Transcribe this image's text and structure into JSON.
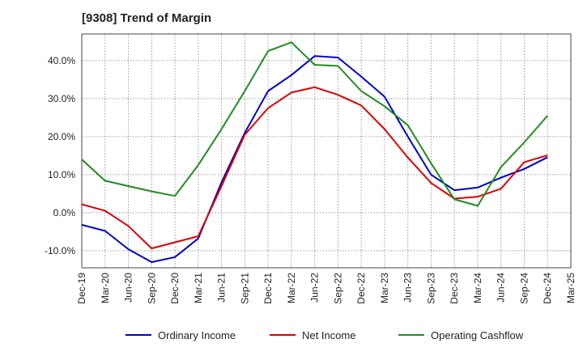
{
  "chart_data": {
    "type": "line",
    "title": "[9308]  Trend of Margin",
    "xlabel": "",
    "ylabel": "",
    "categories": [
      "Dec-19",
      "Mar-20",
      "Jun-20",
      "Sep-20",
      "Dec-20",
      "Mar-21",
      "Jun-21",
      "Sep-21",
      "Dec-21",
      "Mar-22",
      "Jun-22",
      "Sep-22",
      "Dec-22",
      "Mar-23",
      "Jun-23",
      "Sep-23",
      "Dec-23",
      "Mar-24",
      "Jun-24",
      "Sep-24",
      "Dec-24",
      "Mar-25"
    ],
    "ylim": [
      -14.5,
      47.0
    ],
    "y_ticks": [
      -10,
      0,
      10,
      20,
      30,
      40
    ],
    "y_tick_labels": [
      "-10.0%",
      "0.0%",
      "10.0%",
      "20.0%",
      "30.0%",
      "40.0%"
    ],
    "grid": true,
    "legend_position": "bottom",
    "series": [
      {
        "name": "Ordinary Income",
        "color": "#0000cc",
        "values": [
          -3.2,
          -4.8,
          -9.6,
          -13.0,
          -11.7,
          -6.8,
          8.0,
          21.0,
          32.0,
          36.2,
          41.2,
          40.8,
          35.8,
          30.5,
          20.0,
          10.0,
          5.9,
          6.6,
          9.2,
          11.5,
          14.6,
          null
        ]
      },
      {
        "name": "Net Income",
        "color": "#dd0000",
        "values": [
          2.2,
          0.5,
          -3.5,
          -9.4,
          -7.8,
          -6.2,
          7.0,
          20.5,
          27.5,
          31.6,
          33.0,
          31.0,
          28.2,
          22.0,
          14.5,
          7.8,
          3.7,
          4.2,
          6.3,
          13.3,
          15.1,
          null
        ]
      },
      {
        "name": "Operating Cashflow",
        "color": "#228b22",
        "values": [
          14.0,
          8.4,
          7.0,
          5.6,
          4.4,
          12.5,
          22.0,
          32.0,
          42.5,
          44.8,
          38.9,
          38.6,
          32.0,
          28.0,
          23.0,
          13.0,
          3.5,
          1.8,
          12.0,
          18.5,
          25.5,
          null
        ]
      }
    ]
  }
}
